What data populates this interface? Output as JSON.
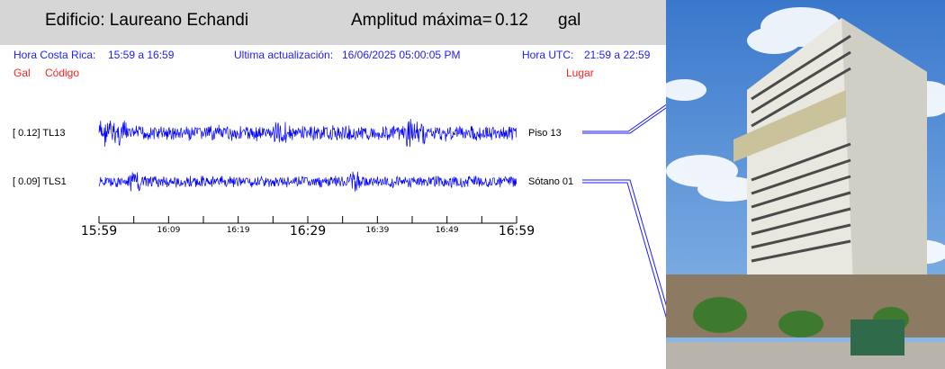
{
  "header": {
    "building": "Edificio: Laureano Echandi",
    "amp_label": "Amplitud máxima=",
    "amp_value": "0.12",
    "amp_unit": "gal"
  },
  "info": {
    "cr_label": "Hora Costa Rica:",
    "cr_range": "15:59 a 16:59",
    "update_label": "Ultima actualización:",
    "update_value": "16/06/2025 05:00:05 PM",
    "utc_label": "Hora UTC:",
    "utc_range": "21:59 a 22:59"
  },
  "columns": {
    "gal": "Gal",
    "code": "Código",
    "place": "Lugar"
  },
  "channels": [
    {
      "label": "[   0.12] TL13",
      "place": "Piso 13",
      "color": "#0000ff",
      "amplitude": 0.12
    },
    {
      "label": "[   0.09] TLS1",
      "place": "Sótano 01",
      "color": "#0000ff",
      "amplitude": 0.09
    }
  ],
  "time_axis": {
    "major": [
      "15:59",
      "16:29",
      "16:59"
    ],
    "minor": [
      "16:09",
      "16:19",
      "16:39",
      "16:49"
    ]
  },
  "photo": {
    "sky": "#4f8fd8",
    "building": "#e4e4dc"
  }
}
